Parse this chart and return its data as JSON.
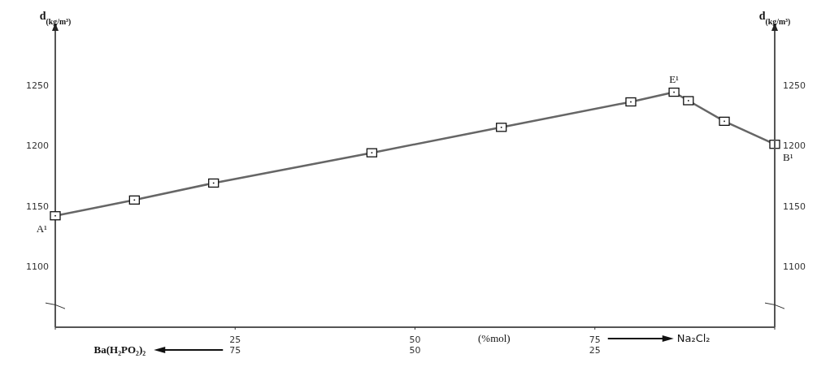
{
  "chart_data": {
    "type": "line",
    "ylabel": "d$_{(kg/m³)}$",
    "y2label": "d$_{(kg/m³)}$",
    "xlabel": "(%mol)",
    "x": [
      0,
      11,
      22,
      44,
      62,
      80,
      86,
      88,
      93,
      100
    ],
    "values": [
      1142,
      1155,
      1169,
      1194,
      1215,
      1236,
      1244,
      1237,
      1220,
      1201
    ],
    "color": "#666666",
    "marker": "square",
    "grid": false,
    "legend": false,
    "xlim": [
      0,
      100
    ],
    "xticks": [
      {
        "value": 0,
        "label": null
      },
      25,
      50,
      75,
      {
        "value": 100,
        "label": null
      }
    ],
    "x2lim": [
      100,
      0
    ],
    "x2ticks": [
      75,
      50,
      25
    ],
    "ylim": [
      1050,
      1300
    ],
    "yticks": [
      1100,
      1150,
      1200,
      1250
    ],
    "y2lim": [
      1050,
      1300
    ],
    "y2ticks": [
      1100,
      1150,
      1200,
      1250
    ],
    "annotations": [
      {
        "text": "A¹",
        "x": 0,
        "y": 1142
      },
      {
        "text": "E¹",
        "x": 86,
        "y": 1244
      },
      {
        "text": "B¹",
        "x": 100,
        "y": 1201
      },
      "Ba(H₂PO₂)₂",
      "Na₂Cl₂"
    ]
  }
}
